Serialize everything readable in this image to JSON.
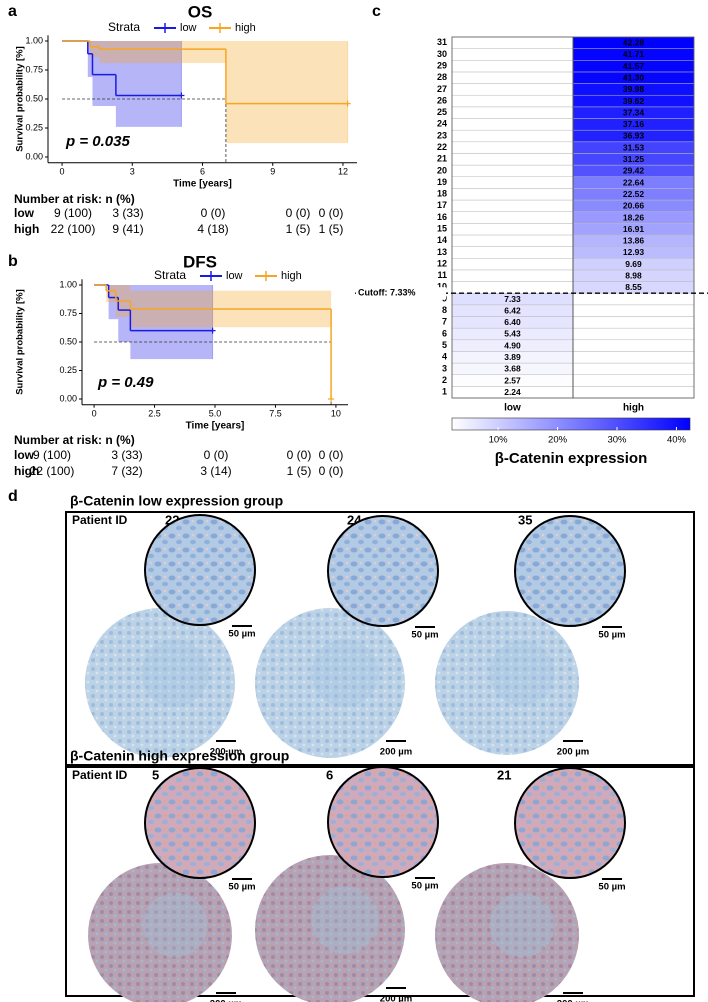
{
  "panel_labels": [
    "a",
    "b",
    "c",
    "d"
  ],
  "chart_data": [
    {
      "type": "km",
      "title": "OS",
      "legend_title": "Strata",
      "xlabel": "Time [years]",
      "ylabel": "Survival probability [%]",
      "annotation": "p = 0.035",
      "xlim": [
        -0.6,
        12.6
      ],
      "xticks": [
        0,
        3,
        6,
        9,
        12
      ],
      "ylim": [
        -0.05,
        1.05
      ],
      "yticks": [
        {
          "value": 0,
          "label": "0.00"
        },
        {
          "value": 0.25,
          "label": "0.25"
        },
        {
          "value": 0.5,
          "label": "0.50"
        },
        {
          "value": 0.75,
          "label": "0.75"
        },
        {
          "value": 1,
          "label": "1.00"
        }
      ],
      "median_line": {
        "y": 0.5,
        "x": 7
      },
      "series": [
        {
          "name": "low",
          "color": "#1a1ae6",
          "x": [
            0,
            1.1,
            1.3,
            2.3,
            5.1
          ],
          "values": [
            1,
            0.89,
            0.71,
            0.53,
            0.53
          ],
          "lower": [
            1,
            0.69,
            0.44,
            0.26,
            0.26
          ],
          "upper": [
            1,
            1,
            1,
            1,
            1
          ]
        },
        {
          "name": "high",
          "color": "#f5a623",
          "x": [
            0,
            1.2,
            1.6,
            7,
            12.2
          ],
          "values": [
            1,
            0.95,
            0.93,
            0.46,
            0.46
          ],
          "lower": [
            1,
            0.86,
            0.81,
            0.12,
            0.12
          ],
          "upper": [
            1,
            1,
            1,
            1,
            1
          ]
        }
      ]
    },
    {
      "type": "km",
      "title": "DFS",
      "legend_title": "Strata",
      "xlabel": "Time [years]",
      "ylabel": "Survival probability [%]",
      "annotation": "p = 0.49",
      "xlim": [
        -0.5,
        10.5
      ],
      "xticks": [
        0,
        2.5,
        {
          "value": 5,
          "label": "5.0"
        },
        7.5,
        10
      ],
      "ylim": [
        -0.05,
        1.05
      ],
      "yticks": [
        {
          "value": 0,
          "label": "0.00"
        },
        {
          "value": 0.25,
          "label": "0.25"
        },
        {
          "value": 0.5,
          "label": "0.50"
        },
        {
          "value": 0.75,
          "label": "0.75"
        },
        {
          "value": 1,
          "label": "1.00"
        }
      ],
      "median_line": {
        "y": 0.5,
        "x": 9.8
      },
      "series": [
        {
          "name": "low",
          "color": "#1a1ae6",
          "x": [
            0,
            0.6,
            1.0,
            1.5,
            4.9
          ],
          "values": [
            1,
            0.89,
            0.78,
            0.6,
            0.6
          ],
          "lower": [
            1,
            0.7,
            0.5,
            0.35,
            0.35
          ],
          "upper": [
            1,
            1,
            1,
            1,
            1
          ]
        },
        {
          "name": "high",
          "color": "#f5a623",
          "x": [
            0,
            0.5,
            0.9,
            1.5,
            9.8
          ],
          "values": [
            1,
            0.95,
            0.86,
            0.79,
            0
          ],
          "lower": [
            1,
            0.85,
            0.72,
            0.63,
            0
          ],
          "upper": [
            1,
            1,
            1,
            0.95,
            0
          ]
        }
      ]
    },
    {
      "type": "heatmap",
      "columns": [
        "low",
        "high"
      ],
      "rows": [
        1,
        2,
        3,
        4,
        5,
        6,
        7,
        8,
        9,
        10,
        11,
        12,
        13,
        14,
        15,
        16,
        17,
        18,
        19,
        20,
        21,
        22,
        23,
        24,
        25,
        26,
        27,
        28,
        29,
        30,
        31
      ],
      "values": [
        [
          2.24,
          null
        ],
        [
          2.57,
          null
        ],
        [
          3.68,
          null
        ],
        [
          3.89,
          null
        ],
        [
          4.9,
          null
        ],
        [
          5.43,
          null
        ],
        [
          6.4,
          null
        ],
        [
          6.42,
          null
        ],
        [
          7.33,
          null
        ],
        [
          null,
          8.55
        ],
        [
          null,
          8.98
        ],
        [
          null,
          9.69
        ],
        [
          null,
          12.93
        ],
        [
          null,
          13.86
        ],
        [
          null,
          16.91
        ],
        [
          null,
          18.26
        ],
        [
          null,
          20.66
        ],
        [
          null,
          22.52
        ],
        [
          null,
          22.64
        ],
        [
          null,
          29.42
        ],
        [
          null,
          31.25
        ],
        [
          null,
          31.53
        ],
        [
          null,
          36.93
        ],
        [
          null,
          37.16
        ],
        [
          null,
          37.34
        ],
        [
          null,
          39.62
        ],
        [
          null,
          39.98
        ],
        [
          null,
          41.3
        ],
        [
          null,
          41.57
        ],
        [
          null,
          41.71
        ],
        [
          null,
          42.28
        ]
      ],
      "value_labels": [
        [
          "2.24",
          null
        ],
        [
          "2.57",
          null
        ],
        [
          "3.68",
          null
        ],
        [
          "3.89",
          null
        ],
        [
          "4.90",
          null
        ],
        [
          "5.43",
          null
        ],
        [
          "6.40",
          null
        ],
        [
          "6.42",
          null
        ],
        [
          "7.33",
          null
        ],
        [
          null,
          "8.55"
        ],
        [
          null,
          "8.98"
        ],
        [
          null,
          "9.69"
        ],
        [
          null,
          "12.93"
        ],
        [
          null,
          "13.86"
        ],
        [
          null,
          "16.91"
        ],
        [
          null,
          "18.26"
        ],
        [
          null,
          "20.66"
        ],
        [
          null,
          "22.52"
        ],
        [
          null,
          "22.64"
        ],
        [
          null,
          "29.42"
        ],
        [
          null,
          "31.25"
        ],
        [
          null,
          "31.53"
        ],
        [
          null,
          "36.93"
        ],
        [
          null,
          "37.16"
        ],
        [
          null,
          "37.34"
        ],
        [
          null,
          "39.62"
        ],
        [
          null,
          "39.98"
        ],
        [
          null,
          "41.30"
        ],
        [
          null,
          "41.57"
        ],
        [
          null,
          "41.71"
        ],
        [
          null,
          "42.28"
        ]
      ],
      "cutoff_label": "Cutoff: 7.33%",
      "colors": [
        "#ffffff",
        "#0000ff"
      ],
      "colorbar": {
        "label": "β-Catenin expression",
        "ticks": [
          {
            "value": 10,
            "label": "10%"
          },
          {
            "value": 20,
            "label": "20%"
          },
          {
            "value": 30,
            "label": "30%"
          },
          {
            "value": 40,
            "label": "40%"
          }
        ]
      }
    }
  ],
  "risk_tables": [
    {
      "title": "Number at risk: n (%)",
      "rows": [
        {
          "label": "low",
          "cells": [
            "9 (100)",
            "3 (33)",
            "0 (0)",
            "0 (0)",
            "0 (0)"
          ]
        },
        {
          "label": "high",
          "cells": [
            "22 (100)",
            "9 (41)",
            "4 (18)",
            "1 (5)",
            "1 (5)"
          ]
        }
      ]
    },
    {
      "title": "Number at risk: n (%)",
      "rows": [
        {
          "label": "low",
          "cells": [
            "9 (100)",
            "3 (33)",
            "0 (0)",
            "0 (0)",
            "0 (0)"
          ]
        },
        {
          "label": "high",
          "cells": [
            "22 (100)",
            "7 (32)",
            "3 (14)",
            "1 (5)",
            "0 (0)"
          ]
        }
      ]
    }
  ],
  "panel_d": {
    "scale_zoom": "50 µm",
    "scale_full": "200 µm",
    "groups": [
      {
        "title": "β-Catenin low expression group",
        "patient_label": "Patient ID",
        "patients": [
          "22",
          "24",
          "35"
        ]
      },
      {
        "title": "β-Catenin high expression group",
        "patient_label": "Patient ID",
        "patients": [
          "5",
          "6",
          "21"
        ]
      }
    ]
  }
}
